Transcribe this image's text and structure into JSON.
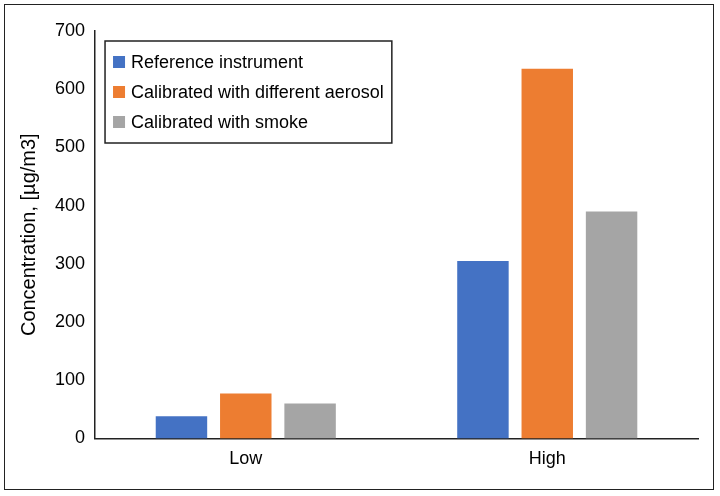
{
  "chart_data": {
    "type": "bar",
    "categories": [
      "Low",
      "High"
    ],
    "series": [
      {
        "name": "Reference instrument",
        "color": "#4472c4",
        "values": [
          38,
          305
        ]
      },
      {
        "name": "Calibrated with different aerosol",
        "color": "#ed7d31",
        "values": [
          77,
          635
        ]
      },
      {
        "name": "Calibrated with smoke",
        "color": "#a5a5a5",
        "values": [
          60,
          390
        ]
      }
    ],
    "y_label": "Concentration, [µg/m3]",
    "ylim": [
      0,
      700
    ],
    "yticks": [
      0,
      100,
      200,
      300,
      400,
      500,
      600,
      700
    ],
    "grid": false,
    "legend": "top-left"
  }
}
